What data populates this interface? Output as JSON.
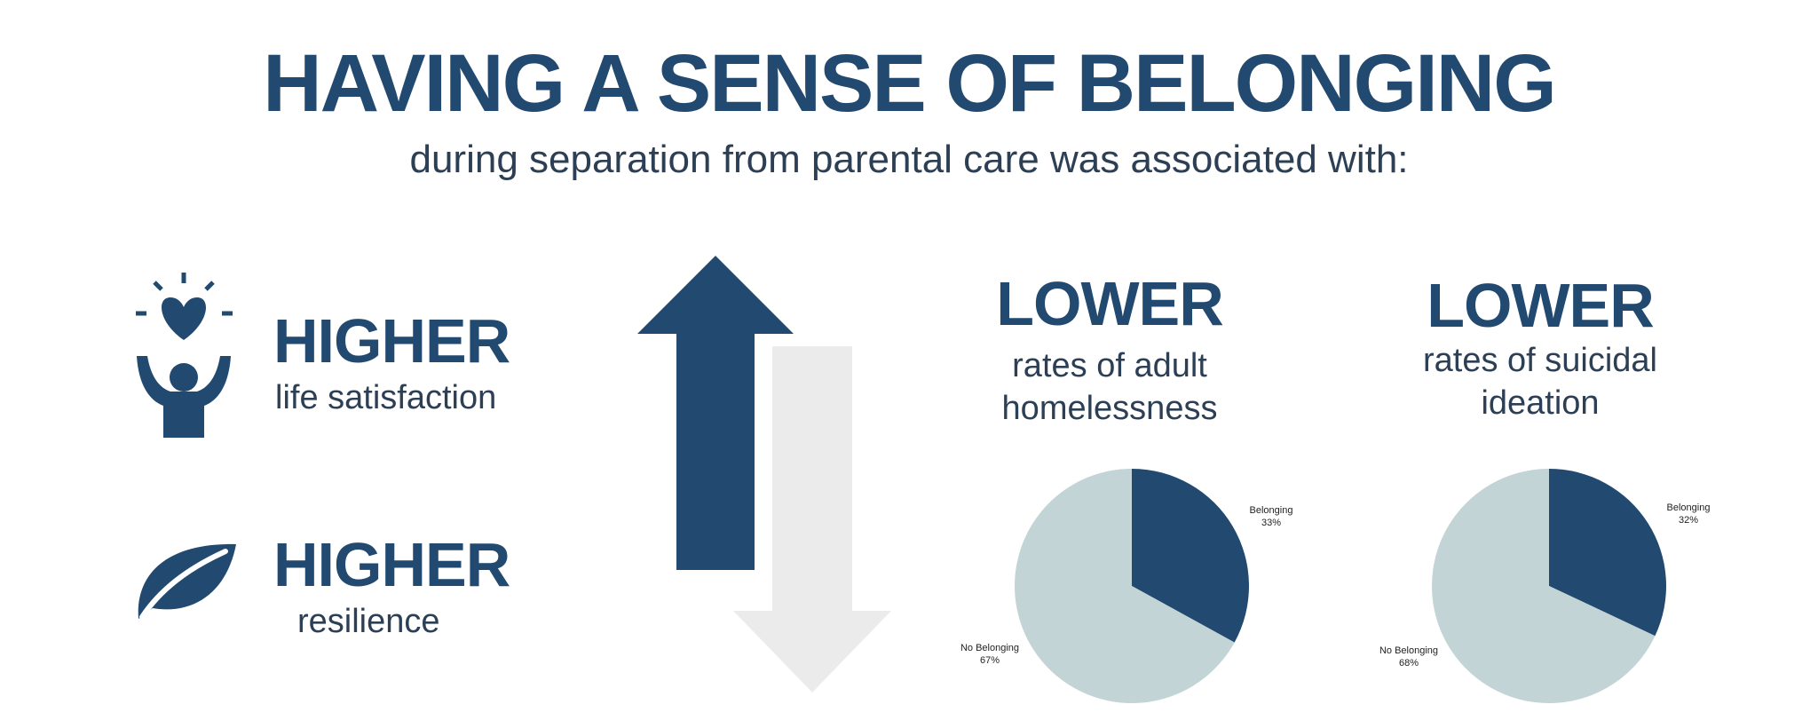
{
  "header": {
    "title": "HAVING A SENSE OF BELONGING",
    "subtitle": "during separation from parental care was associated with:"
  },
  "left_panel": {
    "item1": {
      "heading": "HIGHER",
      "text": "life satisfaction",
      "icon": "happy-person-heart-icon"
    },
    "item2": {
      "heading": "HIGHER",
      "text": "resilience",
      "icon": "leaf-icon"
    }
  },
  "arrows": {
    "up_icon": "up-arrow-icon",
    "down_icon": "down-arrow-icon"
  },
  "panels": [
    {
      "heading": "LOWER",
      "line1": "rates of adult",
      "line2": "homelessness"
    },
    {
      "heading": "LOWER",
      "line1": "rates of suicidal",
      "line2": "ideation"
    }
  ],
  "colors": {
    "navy": "#22496f",
    "pale": "#c3d4d6",
    "light_gray": "#ebebeb"
  },
  "chart_data": [
    {
      "type": "pie",
      "categories": [
        "Belonging",
        "No Belonging"
      ],
      "values": [
        33,
        67
      ],
      "labels": [
        "Belonging",
        "No Belonging"
      ],
      "value_labels": [
        "33%",
        "67%"
      ],
      "colors": [
        "#22496f",
        "#c3d4d6"
      ]
    },
    {
      "type": "pie",
      "categories": [
        "Belonging",
        "No Belonging"
      ],
      "values": [
        32,
        68
      ],
      "labels": [
        "Belonging",
        "No Belonging"
      ],
      "value_labels": [
        "32%",
        "68%"
      ],
      "colors": [
        "#22496f",
        "#c3d4d6"
      ]
    }
  ]
}
